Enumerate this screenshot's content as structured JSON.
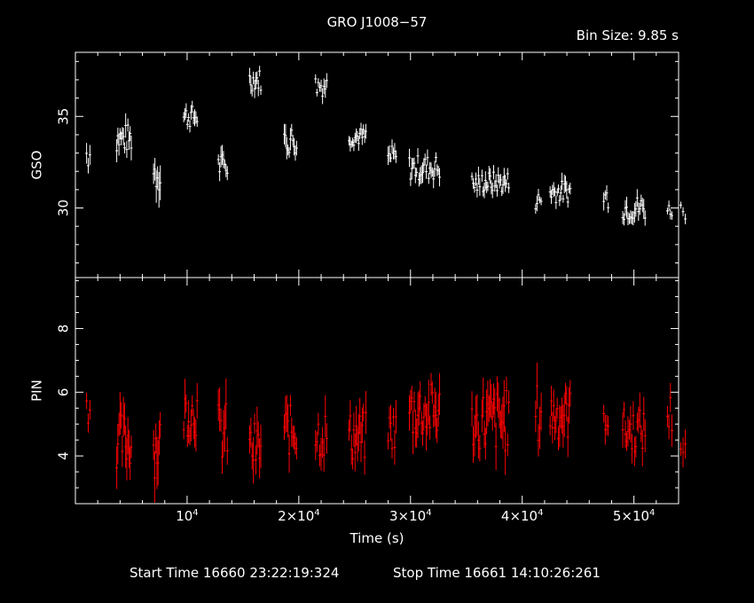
{
  "chart_data": {
    "type": "scatter",
    "title": "GRO J1008−57",
    "bin_size_text": "Bin Size: 9.85 s",
    "xlabel": "Time (s)",
    "xlim": [
      0,
      54000
    ],
    "x_ticks": [
      {
        "value": 10000,
        "base": "10",
        "exp": "4"
      },
      {
        "value": 20000,
        "base": "2×10",
        "exp": "4"
      },
      {
        "value": 30000,
        "base": "3×10",
        "exp": "4"
      },
      {
        "value": 40000,
        "base": "4×10",
        "exp": "4"
      },
      {
        "value": 50000,
        "base": "5×10",
        "exp": "4"
      }
    ],
    "footer": {
      "start": "Start Time 16660 23:22:19:324",
      "stop": "Stop Time 16661 14:10:26:261"
    },
    "panels": [
      {
        "ylabel": "GSO",
        "ylim": [
          26.2,
          38.5
        ],
        "y_ticks": [
          30,
          35
        ],
        "color": "#ffffff",
        "series": [
          {
            "segments": [
              {
                "x0": 1000,
                "x1": 1300,
                "level": 33.0,
                "spread": 0.9,
                "n": 3
              },
              {
                "x0": 3700,
                "x1": 5000,
                "level": 33.8,
                "spread": 0.8,
                "n": 14
              },
              {
                "x0": 7000,
                "x1": 7600,
                "level": 32.0,
                "spread": 1.2,
                "n": 6
              },
              {
                "x0": 9700,
                "x1": 10900,
                "level": 35.0,
                "spread": 0.6,
                "n": 12
              },
              {
                "x0": 12800,
                "x1": 13600,
                "level": 32.3,
                "spread": 0.7,
                "n": 8
              },
              {
                "x0": 15600,
                "x1": 16600,
                "level": 37.0,
                "spread": 0.6,
                "n": 10
              },
              {
                "x0": 18700,
                "x1": 19800,
                "level": 33.7,
                "spread": 0.8,
                "n": 11
              },
              {
                "x0": 21500,
                "x1": 22500,
                "level": 36.7,
                "spread": 0.6,
                "n": 9
              },
              {
                "x0": 24500,
                "x1": 26000,
                "level": 33.9,
                "spread": 0.5,
                "n": 15
              },
              {
                "x0": 28000,
                "x1": 28700,
                "level": 32.8,
                "spread": 0.6,
                "n": 7
              },
              {
                "x0": 29900,
                "x1": 32600,
                "level": 32.2,
                "spread": 0.7,
                "n": 26
              },
              {
                "x0": 35500,
                "x1": 36200,
                "level": 31.3,
                "spread": 0.6,
                "n": 7
              },
              {
                "x0": 36400,
                "x1": 38800,
                "level": 31.4,
                "spread": 0.6,
                "n": 24
              },
              {
                "x0": 41200,
                "x1": 41700,
                "level": 30.4,
                "spread": 0.5,
                "n": 5
              },
              {
                "x0": 42500,
                "x1": 44300,
                "level": 30.9,
                "spread": 0.6,
                "n": 18
              },
              {
                "x0": 47300,
                "x1": 47700,
                "level": 30.6,
                "spread": 0.6,
                "n": 4
              },
              {
                "x0": 49000,
                "x1": 51000,
                "level": 30.0,
                "spread": 0.7,
                "n": 18
              },
              {
                "x0": 53000,
                "x1": 53400,
                "level": 29.9,
                "spread": 0.4,
                "n": 4
              },
              {
                "x0": 54200,
                "x1": 54600,
                "level": 29.9,
                "spread": 0.5,
                "n": 3
              }
            ]
          }
        ]
      },
      {
        "ylabel": "PIN",
        "ylim": [
          2.5,
          9.6
        ],
        "y_ticks": [
          4,
          6,
          8
        ],
        "color": "#ff0000",
        "series": [
          {
            "segments": [
              {
                "x0": 1000,
                "x1": 1300,
                "level": 5.5,
                "spread": 0.5,
                "n": 3
              },
              {
                "x0": 3700,
                "x1": 5000,
                "level": 4.5,
                "spread": 0.9,
                "n": 14
              },
              {
                "x0": 7000,
                "x1": 7600,
                "level": 4.3,
                "spread": 1.0,
                "n": 7
              },
              {
                "x0": 9700,
                "x1": 10900,
                "level": 5.4,
                "spread": 0.8,
                "n": 12
              },
              {
                "x0": 12800,
                "x1": 13600,
                "level": 4.7,
                "spread": 1.0,
                "n": 8
              },
              {
                "x0": 15600,
                "x1": 16600,
                "level": 4.2,
                "spread": 0.9,
                "n": 10
              },
              {
                "x0": 18700,
                "x1": 19800,
                "level": 4.8,
                "spread": 0.8,
                "n": 11
              },
              {
                "x0": 21500,
                "x1": 22500,
                "level": 4.7,
                "spread": 0.8,
                "n": 9
              },
              {
                "x0": 24500,
                "x1": 26000,
                "level": 4.6,
                "spread": 0.8,
                "n": 15
              },
              {
                "x0": 28000,
                "x1": 28700,
                "level": 4.8,
                "spread": 0.7,
                "n": 7
              },
              {
                "x0": 29900,
                "x1": 32600,
                "level": 5.4,
                "spread": 0.9,
                "n": 26
              },
              {
                "x0": 35500,
                "x1": 36200,
                "level": 5.0,
                "spread": 0.8,
                "n": 7
              },
              {
                "x0": 36400,
                "x1": 38800,
                "level": 5.1,
                "spread": 1.0,
                "n": 24
              },
              {
                "x0": 41200,
                "x1": 41700,
                "level": 5.3,
                "spread": 1.0,
                "n": 5
              },
              {
                "x0": 42500,
                "x1": 44300,
                "level": 5.3,
                "spread": 0.8,
                "n": 18
              },
              {
                "x0": 47300,
                "x1": 47700,
                "level": 5.3,
                "spread": 0.6,
                "n": 4
              },
              {
                "x0": 49000,
                "x1": 51000,
                "level": 4.8,
                "spread": 0.7,
                "n": 18
              },
              {
                "x0": 53000,
                "x1": 53400,
                "level": 5.3,
                "spread": 0.7,
                "n": 4
              },
              {
                "x0": 54200,
                "x1": 54600,
                "level": 4.4,
                "spread": 0.6,
                "n": 3
              }
            ]
          }
        ]
      }
    ]
  }
}
